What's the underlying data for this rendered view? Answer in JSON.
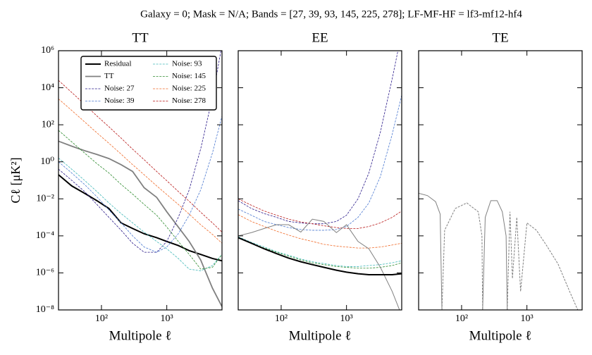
{
  "title": "Galaxy = 0; Mask = N/A; Bands = [27, 39, 93, 145, 225, 278]; LF-MF-HF = lf3-mf12-hf4",
  "chart_data": [
    {
      "type": "line",
      "title": "TT",
      "xlabel": "Multipole ℓ",
      "ylabel": "Cℓ [μK²]",
      "xscale": "log",
      "yscale": "log",
      "xlim": [
        22,
        7000
      ],
      "ylim": [
        1e-08,
        1000000.0
      ],
      "xticks": [
        {
          "value": 100,
          "label": "10²"
        },
        {
          "value": 1000,
          "label": "10³"
        }
      ],
      "yticks": [
        {
          "value": 1000000.0,
          "label": "10⁶"
        },
        {
          "value": 10000.0,
          "label": "10⁴"
        },
        {
          "value": 100,
          "label": "10²"
        },
        {
          "value": 1,
          "label": "10⁰"
        },
        {
          "value": 0.01,
          "label": "10⁻²"
        },
        {
          "value": 0.0001,
          "label": "10⁻⁴"
        },
        {
          "value": 1e-06,
          "label": "10⁻⁶"
        },
        {
          "value": 1e-08,
          "label": "10⁻⁸"
        }
      ],
      "legend": "upper right",
      "legend_ncol": 2,
      "x": [
        22,
        35,
        55,
        85,
        130,
        200,
        300,
        450,
        700,
        1000,
        1500,
        2200,
        3300,
        5000,
        7000
      ],
      "series": [
        {
          "name": "Residual",
          "color": "#000000",
          "linestyle": "solid",
          "width": 2,
          "values": [
            0.2,
            0.05,
            0.02,
            0.008,
            0.003,
            0.0005,
            0.00025,
            0.00013,
            8e-05,
            5e-05,
            3e-05,
            1.6e-05,
            1e-05,
            6e-06,
            4.5e-06
          ]
        },
        {
          "name": "TT",
          "color": "#808080",
          "linestyle": "solid",
          "width": 1.8,
          "values": [
            13,
            7,
            4,
            2.5,
            1.5,
            0.7,
            0.3,
            0.04,
            0.012,
            0.002,
            0.0003,
            5e-05,
            5e-06,
            1.5e-07,
            1.5e-08
          ]
        },
        {
          "name": "Noise: 27",
          "color": "#2a1a8a",
          "linestyle": "dashed",
          "width": 0.8,
          "values": [
            0.4,
            0.1,
            0.025,
            0.005,
            0.001,
            0.0002,
            4e-05,
            1.3e-05,
            1.3e-05,
            5e-05,
            0.001,
            0.03,
            5,
            3000,
            2000000.0
          ]
        },
        {
          "name": "Noise: 39",
          "color": "#4a78d0",
          "linestyle": "dashed",
          "width": 0.8,
          "values": [
            1,
            0.25,
            0.06,
            0.013,
            0.0025,
            0.0005,
            0.0001,
            2.5e-05,
            1.3e-05,
            2.5e-05,
            0.00013,
            0.0013,
            0.03,
            3,
            300
          ]
        },
        {
          "name": "Noise: 93",
          "color": "#40b8b8",
          "linestyle": "dashed",
          "width": 0.8,
          "values": [
            1.6,
            0.4,
            0.1,
            0.025,
            0.006,
            0.0016,
            0.0005,
            0.00016,
            5e-05,
            2e-05,
            6e-06,
            1.6e-06,
            1.3e-06,
            2.5e-06,
            1e-05
          ]
        },
        {
          "name": "Noise: 145",
          "color": "#2e8b2e",
          "linestyle": "dashed",
          "width": 0.8,
          "values": [
            50,
            12,
            3,
            0.8,
            0.25,
            0.06,
            0.018,
            0.005,
            0.0013,
            0.0003,
            5e-05,
            1e-05,
            1.6e-06,
            2e-06,
            1e-05
          ]
        },
        {
          "name": "Noise: 225",
          "color": "#f06a28",
          "linestyle": "dashed",
          "width": 0.8,
          "values": [
            2500,
            600,
            145,
            37,
            10,
            2.6,
            0.7,
            0.2,
            0.05,
            0.017,
            0.005,
            0.0015,
            0.0004,
            0.00012,
            4e-05
          ]
        },
        {
          "name": "Noise: 278",
          "color": "#b81818",
          "linestyle": "dashed",
          "width": 0.8,
          "values": [
            25000,
            5600,
            1300,
            300,
            78,
            19,
            4.8,
            1.3,
            0.3,
            0.095,
            0.025,
            0.0074,
            0.0019,
            0.0005,
            0.00016
          ]
        }
      ]
    },
    {
      "type": "line",
      "title": "EE",
      "xlabel": "Multipole ℓ",
      "xscale": "log",
      "yscale": "log",
      "xlim": [
        22,
        7000
      ],
      "ylim": [
        1e-08,
        1000000.0
      ],
      "xticks": [
        {
          "value": 100,
          "label": "10²"
        },
        {
          "value": 1000,
          "label": "10³"
        }
      ],
      "yticks": [
        1000000,
        10000,
        100,
        1,
        0.01,
        0.0001,
        1e-06,
        1e-08
      ],
      "ytick_labels": false,
      "x": [
        22,
        35,
        55,
        85,
        130,
        200,
        300,
        450,
        700,
        1000,
        1500,
        2200,
        3300,
        5000,
        7000
      ],
      "series": [
        {
          "color": "#4a78d0",
          "linestyle": "dashed",
          "width": 0.8,
          "values": [
            0.0028,
            0.0013,
            0.0006,
            0.0004,
            0.00028,
            0.00022,
            0.0002,
            0.0002,
            0.00022,
            0.00032,
            0.001,
            0.006,
            0.16,
            30,
            4000
          ]
        },
        {
          "color": "#2a1a8a",
          "linestyle": "dashed",
          "width": 0.8,
          "values": [
            0.008,
            0.003,
            0.0016,
            0.001,
            0.0006,
            0.0005,
            0.00045,
            0.00045,
            0.0006,
            0.0013,
            0.01,
            0.25,
            40,
            30000,
            10000000.0
          ]
        },
        {
          "color": "#f06a28",
          "linestyle": "dashed",
          "width": 0.8,
          "values": [
            0.0014,
            0.0006,
            0.00032,
            0.00018,
            0.00011,
            7e-05,
            5e-05,
            3.5e-05,
            2.8e-05,
            2.5e-05,
            2.2e-05,
            2.2e-05,
            2.5e-05,
            3.2e-05,
            4e-05
          ]
        },
        {
          "color": "#b81818",
          "linestyle": "dashed",
          "width": 0.8,
          "values": [
            0.01,
            0.0045,
            0.0022,
            0.0013,
            0.0008,
            0.00056,
            0.00045,
            0.00035,
            0.00028,
            0.00025,
            0.00025,
            0.00032,
            0.0005,
            0.001,
            0.0022
          ]
        },
        {
          "color": "#40b8b8",
          "linestyle": "dashed",
          "width": 0.8,
          "values": [
            9e-05,
            4.5e-05,
            2.5e-05,
            1.4e-05,
            9e-06,
            5.6e-06,
            4e-06,
            3.2e-06,
            2.5e-06,
            2.2e-06,
            2.2e-06,
            2.5e-06,
            2.8e-06,
            3.5e-06,
            4.5e-06
          ]
        },
        {
          "color": "#2e8b2e",
          "linestyle": "dashed",
          "width": 0.8,
          "values": [
            8e-05,
            4e-05,
            2.2e-05,
            1.3e-05,
            8e-06,
            5e-06,
            3.5e-06,
            2.8e-06,
            2.2e-06,
            2e-06,
            1.8e-06,
            1.8e-06,
            2e-06,
            2.5e-06,
            3.5e-06
          ]
        },
        {
          "color": "#808080",
          "linestyle": "solid",
          "width": 1,
          "values": [
            0.0001,
            0.00015,
            0.00025,
            0.0004,
            0.0004,
            0.00016,
            0.0008,
            0.0006,
            0.00015,
            0.0004,
            5e-05,
            2e-05,
            2e-06,
            1e-07,
            5e-09
          ]
        },
        {
          "color": "#000000",
          "linestyle": "solid",
          "width": 2,
          "values": [
            8e-05,
            4e-05,
            2e-05,
            1.1e-05,
            6.3e-06,
            4e-06,
            2.8e-06,
            2e-06,
            1.4e-06,
            1.1e-06,
            9e-07,
            8e-07,
            8e-07,
            8e-07,
            9e-07
          ]
        }
      ]
    },
    {
      "type": "line",
      "title": "TE",
      "xlabel": "Multipole ℓ",
      "xscale": "log",
      "yscale": "log",
      "xlim": [
        22,
        7000
      ],
      "ylim": [
        1e-08,
        1000000.0
      ],
      "xticks": [
        {
          "value": 100,
          "label": "10²"
        },
        {
          "value": 1000,
          "label": "10³"
        }
      ],
      "yticks": [
        1000000,
        10000,
        100,
        1,
        0.01,
        0.0001,
        1e-06,
        1e-08
      ],
      "ytick_labels": false,
      "x": [
        22,
        30,
        40,
        47,
        50,
        55,
        80,
        120,
        180,
        205,
        210,
        230,
        280,
        350,
        420,
        480,
        500,
        550,
        600,
        700,
        800,
        1000,
        1400,
        2000,
        3000,
        4500,
        6000
      ],
      "series": [
        {
          "color": "#808080",
          "linestyle": "solid",
          "width": 1,
          "values": [
            0.02,
            0.015,
            0.007,
            0.0015,
            1e-08,
            null,
            null,
            null,
            null,
            null,
            1e-08,
            0.001,
            0.008,
            0.008,
            0.002,
            0.0001,
            1e-08,
            null,
            null,
            null,
            null,
            null,
            null,
            null,
            null,
            null,
            null
          ]
        },
        {
          "color": "#808080",
          "linestyle": "dashed",
          "width": 1,
          "values": [
            null,
            null,
            null,
            null,
            1e-08,
            0.0002,
            0.003,
            0.006,
            0.002,
            0.0001,
            1e-08,
            null,
            null,
            null,
            null,
            null,
            1e-08,
            0.002,
            5e-07,
            0.001,
            1e-07,
            0.0005,
            0.0002,
            3e-05,
            3e-06,
            1e-07,
            1e-08
          ]
        }
      ]
    }
  ]
}
